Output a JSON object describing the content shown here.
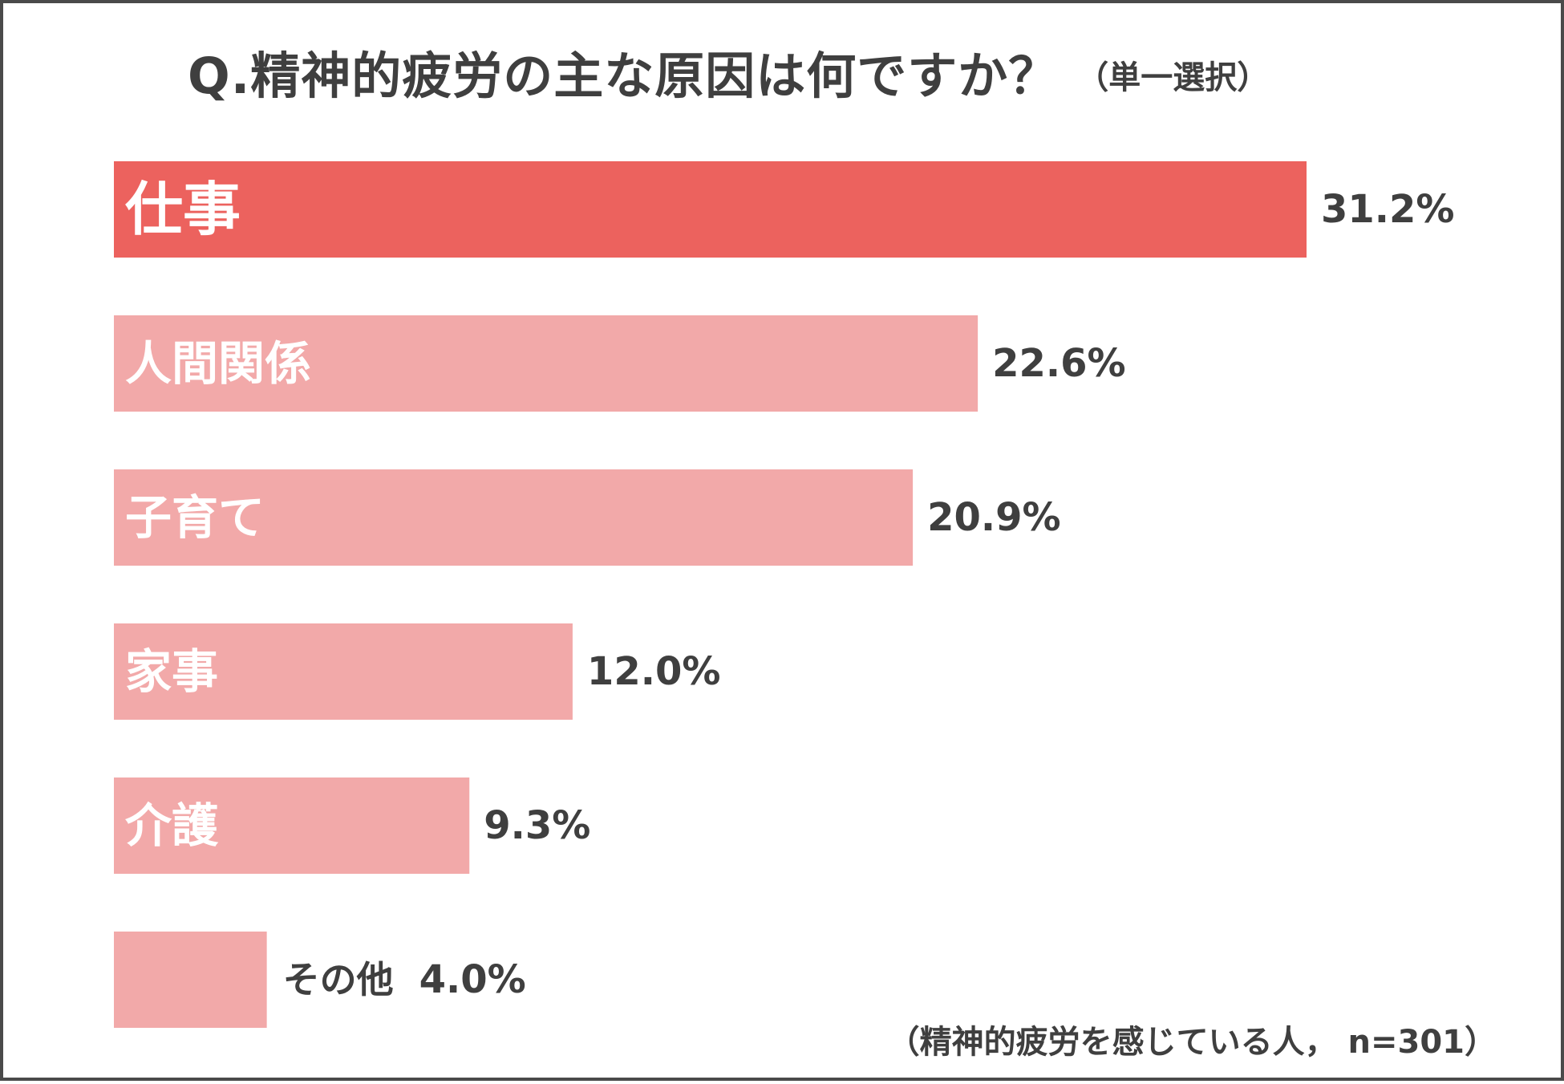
{
  "title": {
    "question": "Q.精神的疲労の主な原因は何ですか？",
    "selection_note": "（単一選択）"
  },
  "footnote": "（精神的疲労を感じている人， n=301）",
  "colors": {
    "highlight_bar": "#ec625e",
    "normal_bar": "#f2a9a9",
    "text_dark": "#3f3f3f",
    "bar_text": "#ffffff"
  },
  "chart_data": {
    "type": "bar",
    "orientation": "horizontal",
    "title": "Q.精神的疲労の主な原因は何ですか？",
    "subtitle": "（単一選択）",
    "categories": [
      "仕事",
      "人間関係",
      "子育て",
      "家事",
      "介護",
      "その他"
    ],
    "values": [
      31.2,
      22.6,
      20.9,
      12.0,
      9.3,
      4.0
    ],
    "value_labels": [
      "31.2%",
      "22.6%",
      "20.9%",
      "12.0%",
      "9.3%",
      "4.0%"
    ],
    "unit": "%",
    "highlighted_category": "仕事",
    "xlim": [
      0,
      31.2
    ],
    "grid": false,
    "legend": "none",
    "note": "（精神的疲労を感じている人， n=301）"
  }
}
